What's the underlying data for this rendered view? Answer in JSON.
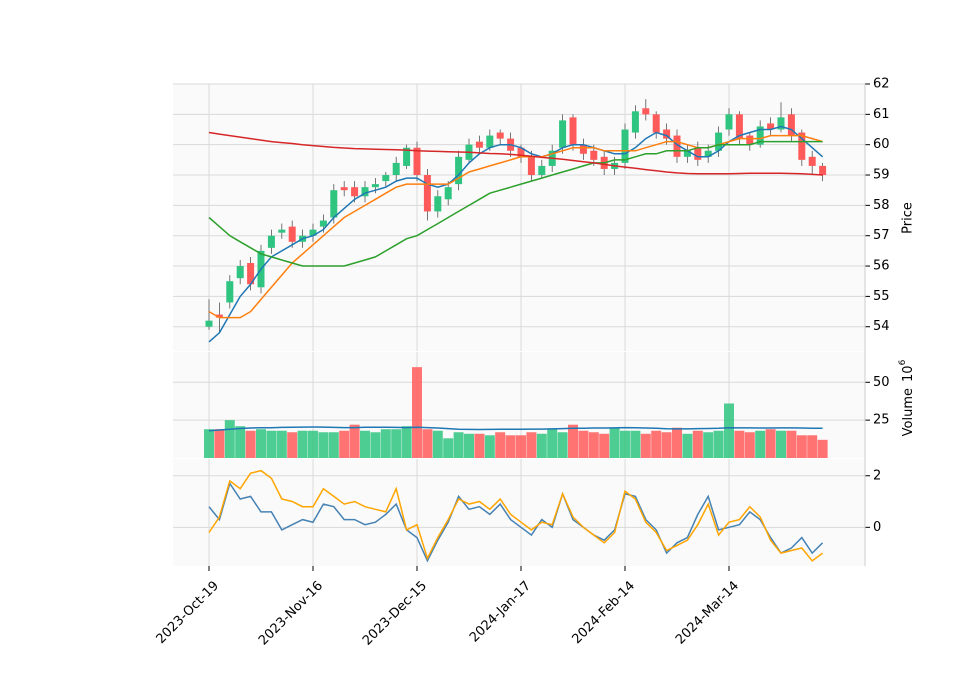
{
  "chart_data": [
    {
      "type": "candlestick",
      "ylabel": "Price",
      "ylim": [
        53.2,
        62
      ],
      "yticks": [
        54,
        55,
        56,
        57,
        58,
        59,
        60,
        61,
        62
      ],
      "grid": true,
      "up_color": "#2fc480",
      "down_color": "#ff5a5a",
      "open": [
        54.0,
        54.4,
        54.8,
        55.6,
        56.1,
        55.3,
        56.6,
        57.1,
        57.3,
        56.8,
        57.0,
        57.3,
        57.6,
        58.6,
        58.6,
        58.3,
        58.6,
        58.8,
        59.0,
        59.3,
        59.9,
        59.0,
        57.8,
        58.2,
        58.7,
        59.5,
        60.1,
        59.9,
        60.4,
        60.2,
        59.9,
        59.6,
        59.0,
        59.3,
        59.9,
        60.9,
        60.0,
        59.8,
        59.6,
        59.2,
        59.4,
        60.4,
        61.2,
        61.0,
        60.5,
        60.3,
        59.6,
        59.9,
        59.6,
        59.8,
        60.5,
        61.0,
        60.3,
        60.0,
        60.7,
        60.5,
        61.0,
        60.4,
        59.6,
        59.3
      ],
      "high": [
        54.9,
        54.8,
        55.7,
        56.2,
        56.3,
        56.7,
        57.2,
        57.4,
        57.5,
        57.2,
        57.4,
        57.7,
        58.7,
        58.8,
        58.8,
        58.8,
        58.9,
        59.1,
        59.6,
        60.0,
        60.1,
        59.2,
        58.5,
        58.8,
        59.8,
        60.2,
        60.3,
        60.5,
        60.5,
        60.4,
        60.0,
        59.8,
        59.5,
        60.0,
        61.0,
        61.0,
        60.2,
        60.0,
        59.8,
        59.6,
        60.7,
        61.3,
        61.5,
        61.1,
        60.7,
        60.5,
        60.0,
        60.1,
        60.0,
        60.6,
        61.2,
        61.1,
        60.4,
        60.8,
        60.9,
        61.4,
        61.2,
        60.5,
        59.8,
        59.4
      ],
      "low": [
        53.9,
        53.8,
        54.6,
        55.4,
        55.2,
        55.1,
        56.4,
        56.9,
        56.6,
        56.6,
        56.8,
        57.1,
        57.4,
        58.3,
        58.1,
        58.1,
        58.4,
        58.6,
        58.8,
        59.2,
        58.8,
        57.5,
        57.6,
        58.0,
        58.5,
        59.4,
        59.7,
        59.8,
        60.0,
        59.6,
        59.4,
        58.8,
        58.9,
        59.1,
        59.7,
        59.8,
        59.5,
        59.3,
        59.0,
        59.0,
        59.2,
        60.2,
        60.8,
        60.2,
        60.0,
        59.4,
        59.4,
        59.3,
        59.4,
        59.6,
        60.3,
        60.0,
        59.8,
        59.9,
        60.3,
        60.4,
        60.1,
        59.3,
        59.0,
        58.8
      ],
      "close": [
        54.2,
        54.3,
        55.5,
        56.0,
        55.4,
        56.5,
        57.0,
        57.2,
        56.8,
        57.0,
        57.2,
        57.5,
        58.5,
        58.5,
        58.3,
        58.6,
        58.7,
        59.0,
        59.4,
        59.9,
        59.0,
        57.8,
        58.3,
        58.6,
        59.6,
        60.0,
        59.9,
        60.3,
        60.2,
        59.8,
        59.6,
        59.0,
        59.3,
        59.8,
        60.8,
        60.0,
        59.7,
        59.5,
        59.2,
        59.4,
        60.5,
        61.1,
        61.0,
        60.4,
        60.2,
        59.6,
        59.8,
        59.5,
        59.8,
        60.4,
        61.0,
        60.2,
        60.0,
        60.6,
        60.5,
        60.9,
        60.3,
        59.5,
        59.3,
        59.0
      ],
      "series": [
        {
          "color": "#1f77b4",
          "values": [
            53.5,
            53.8,
            54.4,
            55.0,
            55.4,
            55.9,
            56.3,
            56.5,
            56.7,
            56.9,
            57.0,
            57.2,
            57.6,
            57.9,
            58.2,
            58.4,
            58.5,
            58.6,
            58.8,
            58.9,
            58.9,
            58.7,
            58.6,
            58.7,
            59.0,
            59.4,
            59.7,
            59.9,
            60.0,
            60.0,
            59.9,
            59.7,
            59.6,
            59.7,
            59.9,
            60.0,
            60.0,
            59.9,
            59.8,
            59.7,
            59.7,
            59.9,
            60.2,
            60.4,
            60.3,
            60.0,
            59.8,
            59.6,
            59.6,
            59.8,
            60.1,
            60.3,
            60.4,
            60.5,
            60.5,
            60.6,
            60.5,
            60.2,
            59.9,
            59.6
          ]
        },
        {
          "color": "#ff7f0e",
          "values": [
            54.5,
            54.3,
            54.3,
            54.3,
            54.5,
            54.9,
            55.3,
            55.7,
            56.1,
            56.4,
            56.7,
            57.0,
            57.3,
            57.6,
            57.8,
            58.0,
            58.2,
            58.4,
            58.6,
            58.7,
            58.7,
            58.7,
            58.7,
            58.7,
            58.9,
            59.1,
            59.2,
            59.3,
            59.4,
            59.5,
            59.6,
            59.6,
            59.6,
            59.7,
            59.8,
            59.9,
            59.9,
            59.9,
            59.8,
            59.8,
            59.8,
            59.8,
            59.9,
            60.0,
            60.1,
            60.1,
            60.0,
            59.9,
            59.9,
            60.0,
            60.1,
            60.2,
            60.2,
            60.2,
            60.3,
            60.3,
            60.3,
            60.3,
            60.2,
            60.1
          ]
        },
        {
          "color": "#2ca02c",
          "values": [
            57.6,
            57.3,
            57.0,
            56.8,
            56.6,
            56.4,
            56.3,
            56.2,
            56.1,
            56.0,
            56.0,
            56.0,
            56.0,
            56.0,
            56.1,
            56.2,
            56.3,
            56.5,
            56.7,
            56.9,
            57.0,
            57.2,
            57.4,
            57.6,
            57.8,
            58.0,
            58.2,
            58.4,
            58.5,
            58.6,
            58.7,
            58.8,
            58.9,
            59.0,
            59.1,
            59.2,
            59.3,
            59.4,
            59.4,
            59.5,
            59.5,
            59.6,
            59.7,
            59.7,
            59.8,
            59.8,
            59.8,
            59.9,
            59.9,
            60.0,
            60.0,
            60.0,
            60.0,
            60.1,
            60.1,
            60.1,
            60.1,
            60.1,
            60.1,
            60.1
          ]
        },
        {
          "color": "#d62728",
          "values": [
            60.4,
            60.35,
            60.3,
            60.25,
            60.2,
            60.15,
            60.1,
            60.07,
            60.04,
            60.0,
            59.97,
            59.94,
            59.91,
            59.89,
            59.87,
            59.86,
            59.85,
            59.84,
            59.83,
            59.82,
            59.8,
            59.79,
            59.78,
            59.77,
            59.76,
            59.75,
            59.73,
            59.71,
            59.7,
            59.68,
            59.65,
            59.62,
            59.58,
            59.55,
            59.52,
            59.48,
            59.44,
            59.4,
            59.35,
            59.3,
            59.26,
            59.22,
            59.18,
            59.14,
            59.1,
            59.07,
            59.05,
            59.04,
            59.04,
            59.04,
            59.04,
            59.05,
            59.06,
            59.06,
            59.06,
            59.06,
            59.05,
            59.04,
            59.02,
            59.0
          ]
        }
      ]
    },
    {
      "type": "bar",
      "ylabel": "Volume",
      "ylabel_base": "10",
      "ylabel_exponent": "6",
      "ylim": [
        0,
        70
      ],
      "yticks": [
        25,
        50
      ],
      "grid": true,
      "values": [
        19,
        19,
        25,
        21,
        18,
        19,
        18,
        18,
        17,
        18,
        18,
        17,
        17,
        18,
        22,
        18,
        17,
        19,
        19,
        21,
        60,
        19,
        18,
        13,
        17,
        16,
        16,
        15,
        17,
        15,
        15,
        17,
        16,
        19,
        17,
        22,
        18,
        17,
        16,
        20,
        18,
        18,
        16,
        18,
        17,
        20,
        16,
        18,
        17,
        18,
        36,
        18,
        17,
        18,
        19,
        18,
        18,
        15,
        15,
        12
      ],
      "series": [
        {
          "color": "#1f77b4",
          "values": [
            18,
            18.5,
            19,
            19.5,
            19.8,
            20,
            20,
            20.2,
            20.3,
            20.4,
            20.5,
            20.4,
            20.2,
            20.1,
            20.1,
            20.3,
            20.3,
            20.3,
            20.2,
            20.1,
            20.3,
            20.1,
            19.8,
            19.4,
            19.0,
            18.9,
            18.8,
            18.9,
            19.0,
            19.0,
            19.0,
            19.1,
            19.1,
            19.2,
            19.4,
            19.6,
            19.7,
            19.8,
            19.8,
            19.9,
            20.1,
            20.0,
            19.8,
            19.7,
            19.3,
            19.2,
            19.2,
            19.4,
            19.5,
            19.6,
            20.0,
            19.9,
            19.9,
            19.8,
            19.8,
            19.9,
            19.9,
            19.8,
            19.7,
            19.6
          ]
        }
      ]
    },
    {
      "type": "line",
      "ylim": [
        -1.5,
        2.65
      ],
      "yticks": [
        0,
        2
      ],
      "grid": true,
      "categories": [
        "2023-Oct-19",
        null,
        null,
        null,
        null,
        null,
        null,
        null,
        null,
        null,
        "2023-Nov-16",
        null,
        null,
        null,
        null,
        null,
        null,
        null,
        null,
        null,
        "2023-Dec-15",
        null,
        null,
        null,
        null,
        null,
        null,
        null,
        null,
        null,
        "2024-Jan-17",
        null,
        null,
        null,
        null,
        null,
        null,
        null,
        null,
        null,
        "2024-Feb-14",
        null,
        null,
        null,
        null,
        null,
        null,
        null,
        null,
        null,
        "2024-Mar-14",
        null,
        null,
        null,
        null,
        null,
        null,
        null,
        null,
        null
      ],
      "series": [
        {
          "color": "#4682b4",
          "values": [
            0.8,
            0.3,
            1.7,
            1.1,
            1.2,
            0.6,
            0.6,
            -0.1,
            0.1,
            0.3,
            0.2,
            0.9,
            0.8,
            0.3,
            0.3,
            0.1,
            0.2,
            0.5,
            0.9,
            -0.1,
            -0.4,
            -1.3,
            -0.5,
            0.2,
            1.2,
            0.7,
            0.8,
            0.5,
            0.9,
            0.3,
            0.0,
            -0.3,
            0.3,
            0.0,
            1.3,
            0.3,
            0.0,
            -0.3,
            -0.5,
            -0.1,
            1.3,
            1.2,
            0.3,
            -0.1,
            -1.0,
            -0.6,
            -0.4,
            0.5,
            1.2,
            -0.1,
            0.0,
            0.1,
            0.6,
            0.3,
            -0.4,
            -1.0,
            -0.8,
            -0.4,
            -1.0,
            -0.6
          ]
        },
        {
          "color": "#ffa500",
          "values": [
            -0.2,
            0.4,
            1.8,
            1.5,
            2.1,
            2.2,
            1.9,
            1.1,
            1.0,
            0.8,
            0.8,
            1.5,
            1.2,
            0.9,
            1.0,
            0.8,
            0.7,
            0.6,
            1.5,
            -0.1,
            0.1,
            -1.2,
            -0.4,
            0.3,
            1.1,
            0.9,
            1.0,
            0.7,
            1.1,
            0.5,
            0.2,
            -0.1,
            0.2,
            0.1,
            1.3,
            0.4,
            0.0,
            -0.3,
            -0.6,
            -0.2,
            1.4,
            1.1,
            0.2,
            -0.2,
            -0.9,
            -0.7,
            -0.5,
            0.1,
            0.9,
            -0.3,
            0.2,
            0.3,
            0.8,
            0.4,
            -0.5,
            -1.0,
            -0.9,
            -0.8,
            -1.3,
            -1.0
          ]
        }
      ]
    }
  ]
}
